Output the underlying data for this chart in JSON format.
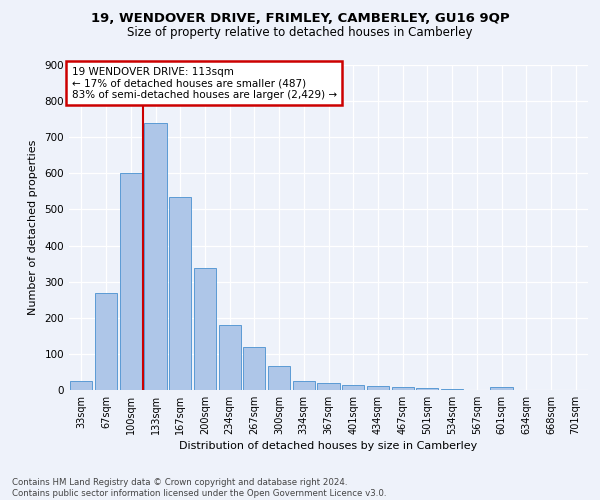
{
  "title": "19, WENDOVER DRIVE, FRIMLEY, CAMBERLEY, GU16 9QP",
  "subtitle": "Size of property relative to detached houses in Camberley",
  "xlabel": "Distribution of detached houses by size in Camberley",
  "ylabel": "Number of detached properties",
  "bar_labels": [
    "33sqm",
    "67sqm",
    "100sqm",
    "133sqm",
    "167sqm",
    "200sqm",
    "234sqm",
    "267sqm",
    "300sqm",
    "334sqm",
    "367sqm",
    "401sqm",
    "434sqm",
    "467sqm",
    "501sqm",
    "534sqm",
    "567sqm",
    "601sqm",
    "634sqm",
    "668sqm",
    "701sqm"
  ],
  "bar_values": [
    25,
    270,
    600,
    740,
    535,
    338,
    180,
    118,
    67,
    25,
    20,
    15,
    10,
    7,
    5,
    4,
    0,
    8,
    0,
    0,
    0
  ],
  "bar_color": "#aec6e8",
  "bar_edge_color": "#5b9bd5",
  "annotation_text": "19 WENDOVER DRIVE: 113sqm\n← 17% of detached houses are smaller (487)\n83% of semi-detached houses are larger (2,429) →",
  "annotation_box_color": "#ffffff",
  "annotation_box_edge": "#cc0000",
  "red_line_color": "#cc0000",
  "background_color": "#eef2fa",
  "grid_color": "#ffffff",
  "footnote": "Contains HM Land Registry data © Crown copyright and database right 2024.\nContains public sector information licensed under the Open Government Licence v3.0.",
  "ylim": [
    0,
    900
  ],
  "yticks": [
    0,
    100,
    200,
    300,
    400,
    500,
    600,
    700,
    800,
    900
  ]
}
